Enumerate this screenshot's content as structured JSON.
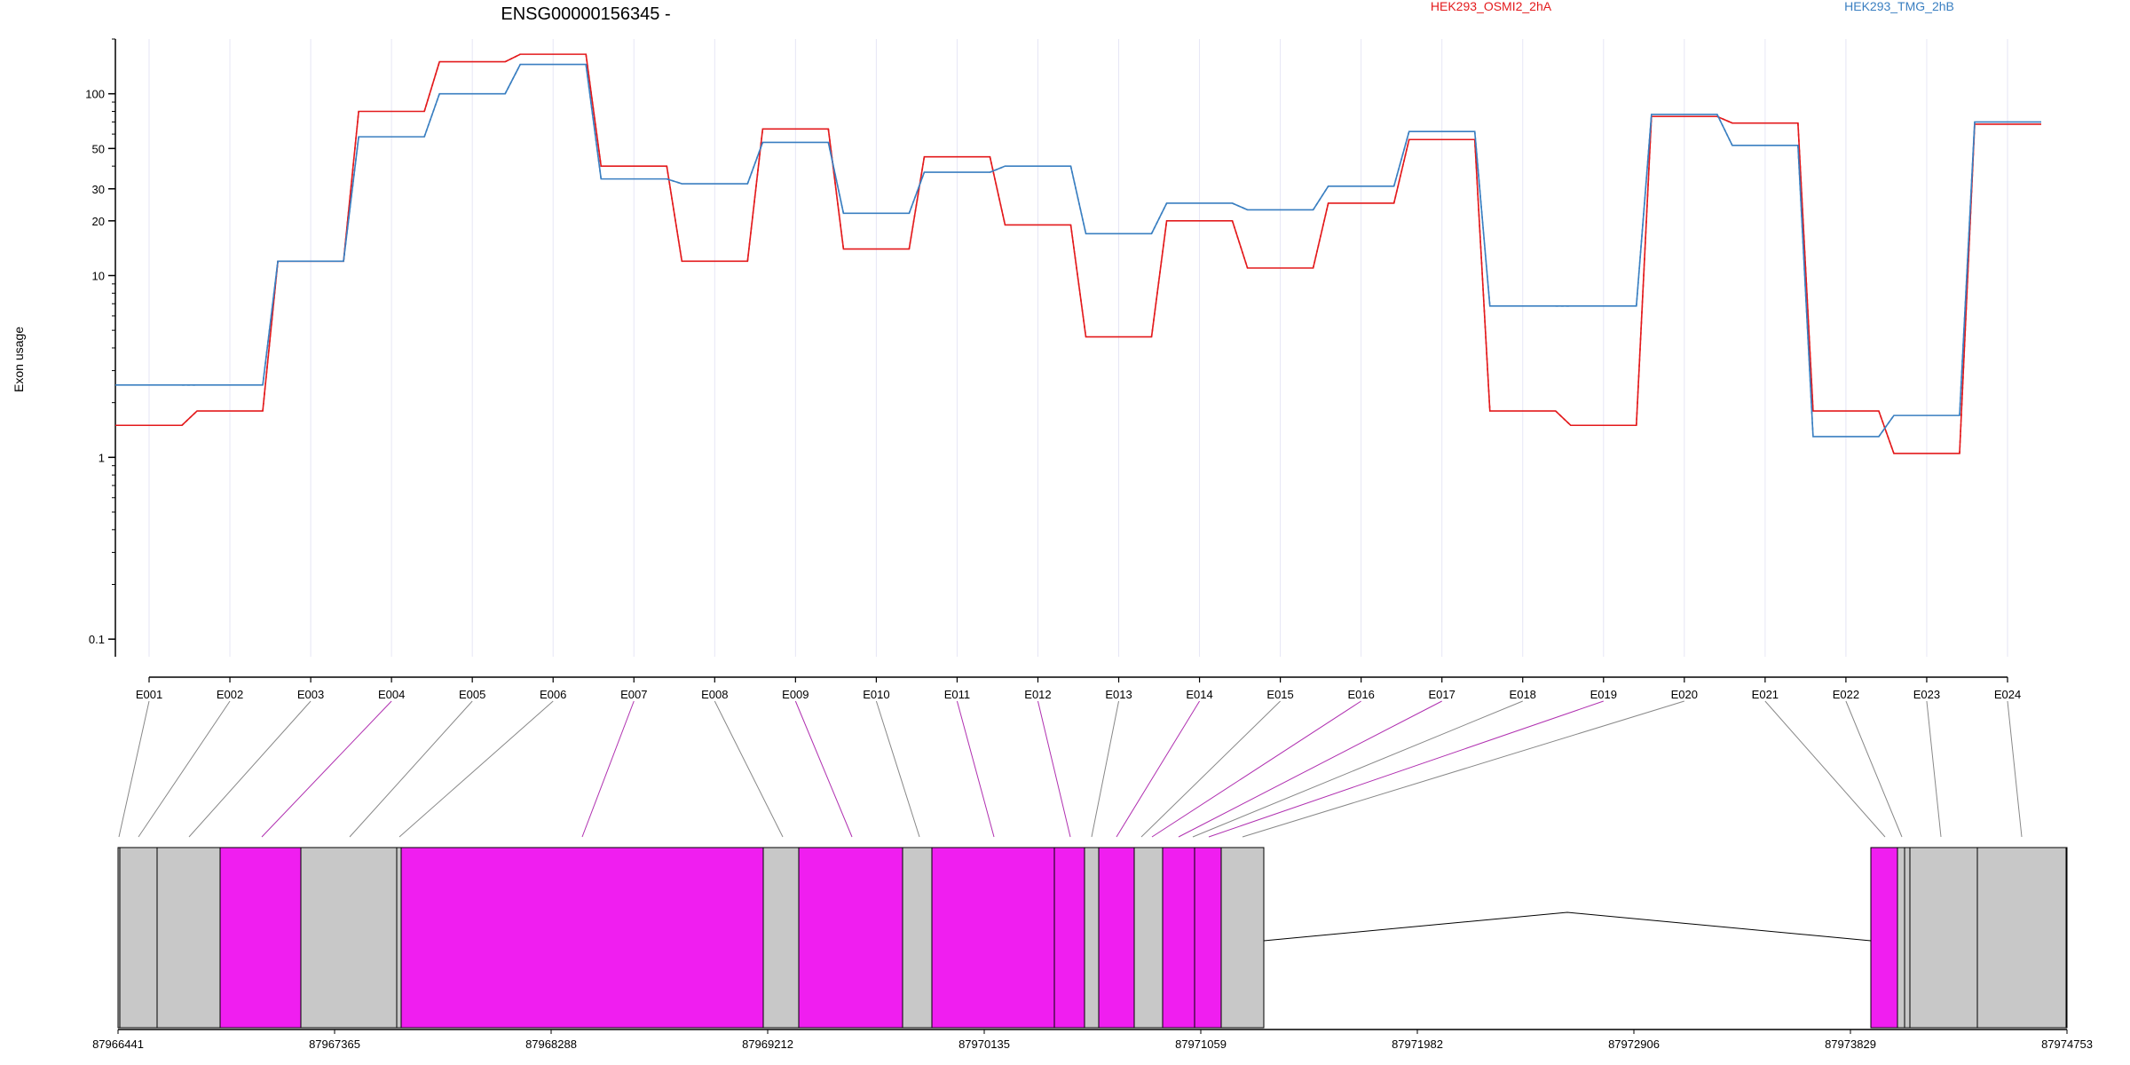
{
  "chart_data": {
    "type": "line",
    "title": "ENSG00000156345 -",
    "ylabel": "Exon usage",
    "yscale": "log",
    "ylim": [
      0.08,
      200
    ],
    "y_ticks": [
      0.1,
      1,
      10,
      20,
      30,
      50,
      100
    ],
    "y_tick_labels": [
      "0.1",
      "1",
      "10",
      "20",
      "30",
      "50",
      "100"
    ],
    "categories": [
      "E001",
      "E002",
      "E003",
      "E004",
      "E005",
      "E006",
      "E007",
      "E008",
      "E009",
      "E010",
      "E011",
      "E012",
      "E013",
      "E014",
      "E015",
      "E016",
      "E017",
      "E018",
      "E019",
      "E020",
      "E021",
      "E022",
      "E023",
      "E024"
    ],
    "series": [
      {
        "name": "HEK293_OSMI2_2hA",
        "color": "#e31a1c",
        "values": [
          1.5,
          1.8,
          12,
          80,
          150,
          165,
          40,
          12,
          64,
          14,
          45,
          19,
          4.6,
          20,
          11,
          25,
          56,
          1.8,
          1.5,
          75,
          69,
          1.8,
          1.05,
          68
        ]
      },
      {
        "name": "HEK293_TMG_2hB",
        "color": "#3a7fc1",
        "values": [
          2.5,
          2.5,
          12,
          58,
          100,
          145,
          34,
          32,
          54,
          22,
          37,
          40,
          17,
          25,
          23,
          31,
          62,
          6.8,
          6.8,
          77,
          52,
          1.3,
          1.7,
          70
        ]
      }
    ],
    "legend": "top-right",
    "gene_model": {
      "coordinate_labels": [
        "87966441",
        "87967365",
        "87968288",
        "87969212",
        "87970135",
        "87971059",
        "87971982",
        "87972906",
        "87973829",
        "87974753"
      ],
      "exons": [
        {
          "id": "E001",
          "highlight": false
        },
        {
          "id": "E002",
          "highlight": false
        },
        {
          "id": "E003",
          "highlight": false
        },
        {
          "id": "E004",
          "highlight": true
        },
        {
          "id": "E005",
          "highlight": false
        },
        {
          "id": "E006",
          "highlight": false
        },
        {
          "id": "E007",
          "highlight": true
        },
        {
          "id": "E008",
          "highlight": false
        },
        {
          "id": "E009",
          "highlight": true
        },
        {
          "id": "E010",
          "highlight": false
        },
        {
          "id": "E011",
          "highlight": true
        },
        {
          "id": "E012",
          "highlight": true
        },
        {
          "id": "E013",
          "highlight": false
        },
        {
          "id": "E014",
          "highlight": true
        },
        {
          "id": "E015",
          "highlight": false
        },
        {
          "id": "E016",
          "highlight": true
        },
        {
          "id": "E017",
          "highlight": true
        },
        {
          "id": "E018",
          "highlight": false
        },
        {
          "id": "E019",
          "highlight": false
        },
        {
          "id": "E020",
          "highlight": true
        },
        {
          "id": "E021",
          "highlight": false
        },
        {
          "id": "E022",
          "highlight": false
        },
        {
          "id": "E023",
          "highlight": false
        },
        {
          "id": "E024",
          "highlight": false
        }
      ],
      "exon_color": "#c8c8c8",
      "highlight_color": "#f01ef0"
    }
  }
}
